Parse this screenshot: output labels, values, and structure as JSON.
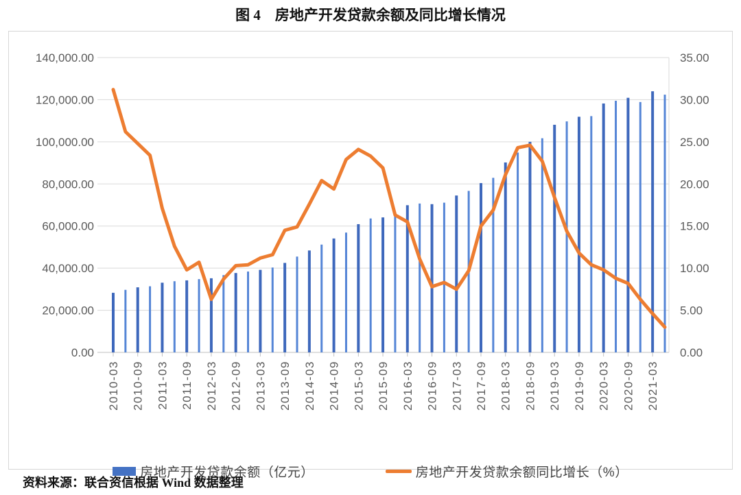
{
  "page": {
    "title": "图 4　房地产开发贷款余额及同比增长情况",
    "source_note": "资料来源：联合资信根据 Wind 数据整理"
  },
  "colors": {
    "bar": "#4472C4",
    "bar_dark": "#3E68BC",
    "bar_light": "#5585D6",
    "line": "#ED7D31",
    "grid": "#D9D9D9",
    "axis": "#BFBFBF",
    "tick_text": "#595959",
    "border": "#D6D6D6"
  },
  "chart_data": {
    "type": "combo-bar-line",
    "title": "图 4　房地产开发贷款余额及同比增长情况",
    "xlabel": "",
    "ylabel_left": "",
    "ylabel_right": "",
    "grid": true,
    "legend_position": "bottom",
    "categories": [
      "2010-03",
      "2010-06",
      "2010-09",
      "2010-12",
      "2011-03",
      "2011-06",
      "2011-09",
      "2011-12",
      "2012-03",
      "2012-06",
      "2012-09",
      "2012-12",
      "2013-03",
      "2013-06",
      "2013-09",
      "2013-12",
      "2014-03",
      "2014-06",
      "2014-09",
      "2014-12",
      "2015-03",
      "2015-06",
      "2015-09",
      "2015-12",
      "2016-03",
      "2016-06",
      "2016-09",
      "2016-12",
      "2017-03",
      "2017-06",
      "2017-09",
      "2017-12",
      "2018-03",
      "2018-06",
      "2018-09",
      "2018-12",
      "2019-03",
      "2019-06",
      "2019-09",
      "2019-12",
      "2020-03",
      "2020-06",
      "2020-09",
      "2020-12",
      "2021-03",
      "2021-06"
    ],
    "x_tick_labels": [
      "2010-03",
      "2010-09",
      "2011-03",
      "2011-09",
      "2012-03",
      "2012-09",
      "2013-03",
      "2013-09",
      "2014-03",
      "2014-09",
      "2015-03",
      "2015-09",
      "2016-03",
      "2016-09",
      "2017-03",
      "2017-09",
      "2018-03",
      "2018-09",
      "2019-03",
      "2019-09",
      "2020-03",
      "2020-09",
      "2021-03"
    ],
    "left_axis": {
      "min": 0,
      "max": 140000,
      "step": 20000,
      "tick_labels": [
        "0.00",
        "20,000.00",
        "40,000.00",
        "60,000.00",
        "80,000.00",
        "100,000.00",
        "120,000.00",
        "140,000.00"
      ]
    },
    "right_axis": {
      "min": 0,
      "max": 35,
      "step": 5,
      "tick_labels": [
        "0.00",
        "5.00",
        "10.00",
        "15.00",
        "20.00",
        "25.00",
        "30.00",
        "35.00"
      ]
    },
    "series": [
      {
        "name": "房地产开发贷款余额（亿元）",
        "type": "bar",
        "axis": "left",
        "color": "#4472C4",
        "values": [
          28300,
          29700,
          30900,
          31400,
          33100,
          33800,
          34200,
          34800,
          35200,
          36700,
          37700,
          38400,
          39200,
          40300,
          42500,
          45500,
          48400,
          51200,
          54100,
          56900,
          60900,
          63600,
          64100,
          64700,
          69900,
          70700,
          70400,
          71100,
          74500,
          76700,
          80400,
          82900,
          90200,
          94900,
          100000,
          101700,
          108100,
          109700,
          111900,
          112200,
          118200,
          119500,
          120900,
          118900,
          124000,
          122400
        ]
      },
      {
        "name": "房地产开发贷款余额同比增长（%）",
        "type": "line",
        "axis": "right",
        "color": "#ED7D31",
        "values": [
          31.2,
          26.2,
          24.8,
          23.4,
          17.1,
          12.6,
          9.8,
          10.7,
          6.3,
          8.7,
          10.3,
          10.4,
          11.2,
          11.6,
          14.5,
          14.9,
          17.6,
          20.4,
          19.4,
          22.9,
          24.1,
          23.3,
          21.9,
          16.3,
          15.5,
          11.1,
          7.8,
          8.3,
          7.5,
          9.7,
          15.0,
          16.9,
          21.1,
          24.3,
          24.6,
          22.7,
          18.4,
          14.4,
          11.8,
          10.4,
          9.8,
          8.8,
          8.2,
          6.3,
          4.6,
          3.0
        ]
      }
    ]
  }
}
